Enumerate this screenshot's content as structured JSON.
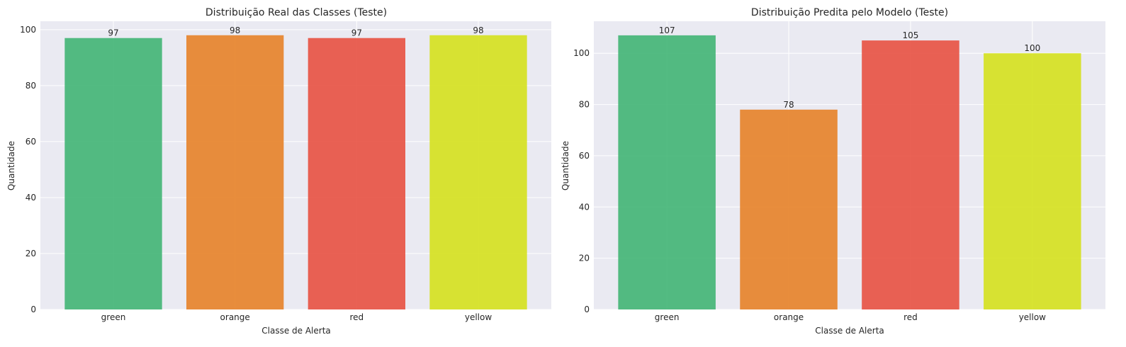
{
  "colors": {
    "plot_bg": "#EAEAF2",
    "grid": "#FFFFFF",
    "green": "#3CB371",
    "orange": "#E67E22",
    "red": "#E74C3C",
    "yellow": "#D4E017"
  },
  "chart_data": [
    {
      "type": "bar",
      "title": "Distribuição Real das Classes (Teste)",
      "xlabel": "Classe de Alerta",
      "ylabel": "Quantidade",
      "categories": [
        "green",
        "orange",
        "red",
        "yellow"
      ],
      "values": [
        97,
        98,
        97,
        98
      ],
      "bar_colors": [
        "green",
        "orange",
        "red",
        "yellow"
      ],
      "ylim": [
        0,
        103
      ],
      "yticks": [
        0,
        20,
        40,
        60,
        80,
        100
      ],
      "grid": true,
      "legend": false
    },
    {
      "type": "bar",
      "title": "Distribuição Predita pelo Modelo (Teste)",
      "xlabel": "Classe de Alerta",
      "ylabel": "Quantidade",
      "categories": [
        "green",
        "orange",
        "red",
        "yellow"
      ],
      "values": [
        107,
        78,
        105,
        100
      ],
      "bar_colors": [
        "green",
        "orange",
        "red",
        "yellow"
      ],
      "ylim": [
        0,
        112.5
      ],
      "yticks": [
        0,
        20,
        40,
        60,
        80,
        100
      ],
      "grid": true,
      "legend": false
    }
  ]
}
